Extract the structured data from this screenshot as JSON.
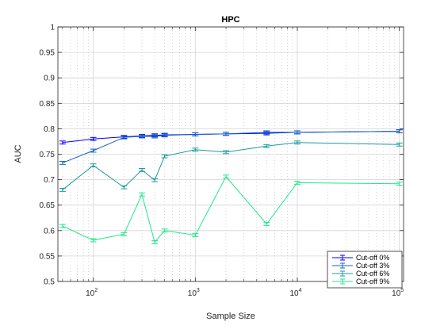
{
  "chart_data": {
    "type": "line",
    "title": "HPC",
    "xlabel": "Sample Size",
    "ylabel": "AUC",
    "x_scale": "log",
    "xlim": [
      45,
      110000
    ],
    "ylim": [
      0.5,
      1.0
    ],
    "x_ticks": [
      100,
      1000,
      10000,
      100000
    ],
    "x_tick_labels": [
      {
        "base": "10",
        "exp": "2"
      },
      {
        "base": "10",
        "exp": "3"
      },
      {
        "base": "10",
        "exp": "4"
      },
      {
        "base": "10",
        "exp": "5"
      }
    ],
    "y_ticks": [
      0.5,
      0.55,
      0.6,
      0.65,
      0.7,
      0.75,
      0.8,
      0.85,
      0.9,
      0.95,
      1.0
    ],
    "y_tick_labels": [
      "0.5",
      "0.55",
      "0.6",
      "0.65",
      "0.7",
      "0.75",
      "0.8",
      "0.85",
      "0.9",
      "0.95",
      "1"
    ],
    "grid": true,
    "minor_grid": true,
    "legend_position": "bottom-right",
    "x": [
      50,
      100,
      200,
      300,
      400,
      500,
      1000,
      2000,
      5000,
      10000,
      100000
    ],
    "error": 0.003,
    "series": [
      {
        "name": "Cut-off 0%",
        "color": "#0000ff",
        "values": [
          0.773,
          0.78,
          0.784,
          0.786,
          0.787,
          0.788,
          0.789,
          0.79,
          0.791,
          0.793,
          0.795
        ]
      },
      {
        "name": "Cut-off 3%",
        "color": "#1565c0",
        "values": [
          0.733,
          0.757,
          0.783,
          0.785,
          0.785,
          0.787,
          0.789,
          0.79,
          0.793,
          0.793,
          0.795
        ]
      },
      {
        "name": "Cut-off 6%",
        "color": "#1a9b9e",
        "values": [
          0.68,
          0.728,
          0.685,
          0.719,
          0.699,
          0.746,
          0.759,
          0.754,
          0.766,
          0.773,
          0.769
        ]
      },
      {
        "name": "Cut-off 9%",
        "color": "#1ee88a",
        "values": [
          0.609,
          0.581,
          0.593,
          0.671,
          0.577,
          0.6,
          0.591,
          0.706,
          0.613,
          0.694,
          0.692
        ]
      }
    ]
  }
}
